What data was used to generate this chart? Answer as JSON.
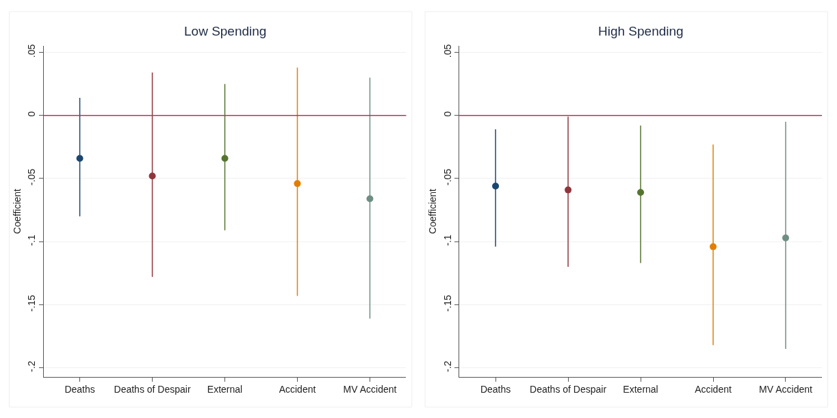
{
  "chart_data": [
    {
      "type": "scatter",
      "title": "Low Spending",
      "ylabel": "Coefficient",
      "categories": [
        "Deaths",
        "Deaths of Despair",
        "External",
        "Accident",
        "MV Accident"
      ],
      "series": [
        {
          "colors": [
            "#1a476f",
            "#90353b",
            "#55752f",
            "#e37e00",
            "#6e8e84"
          ],
          "values": [
            -0.034,
            -0.048,
            -0.034,
            -0.054,
            -0.066
          ],
          "errors": [
            [
              -0.08,
              0.014
            ],
            [
              -0.128,
              0.034
            ],
            [
              -0.091,
              0.025
            ],
            [
              -0.143,
              0.038
            ],
            [
              -0.161,
              0.03
            ]
          ]
        }
      ],
      "ylim": [
        -0.207,
        0.055
      ],
      "yticks": [
        {
          "value": 0.05,
          "label": ".05"
        },
        0,
        {
          "value": -0.05,
          "label": "-.05"
        },
        {
          "value": -0.1,
          "label": "-.1"
        },
        {
          "value": -0.15,
          "label": "-.15"
        },
        {
          "value": -0.2,
          "label": "-.2"
        }
      ],
      "ref_lines": [
        {
          "axis": "y",
          "value": 0,
          "color": "#b8325a"
        }
      ],
      "grid": "y",
      "marker": "circle"
    },
    {
      "type": "scatter",
      "title": "High Spending",
      "ylabel": "Coefficient",
      "categories": [
        "Deaths",
        "Deaths of Despair",
        "External",
        "Accident",
        "MV Accident"
      ],
      "series": [
        {
          "colors": [
            "#1a476f",
            "#90353b",
            "#55752f",
            "#e37e00",
            "#6e8e84"
          ],
          "values": [
            -0.056,
            -0.059,
            -0.061,
            -0.104,
            -0.097
          ],
          "errors": [
            [
              -0.104,
              -0.011
            ],
            [
              -0.12,
              -0.001
            ],
            [
              -0.117,
              -0.008
            ],
            [
              -0.182,
              -0.023
            ],
            [
              -0.185,
              -0.005
            ]
          ]
        }
      ],
      "ylim": [
        -0.207,
        0.055
      ],
      "yticks": [
        {
          "value": 0.05,
          "label": ".05"
        },
        0,
        {
          "value": -0.05,
          "label": "-.05"
        },
        {
          "value": -0.1,
          "label": "-.1"
        },
        {
          "value": -0.15,
          "label": "-.15"
        },
        {
          "value": -0.2,
          "label": "-.2"
        }
      ],
      "ref_lines": [
        {
          "axis": "y",
          "value": 0,
          "color": "#b8325a"
        }
      ],
      "grid": "y",
      "marker": "circle"
    }
  ]
}
